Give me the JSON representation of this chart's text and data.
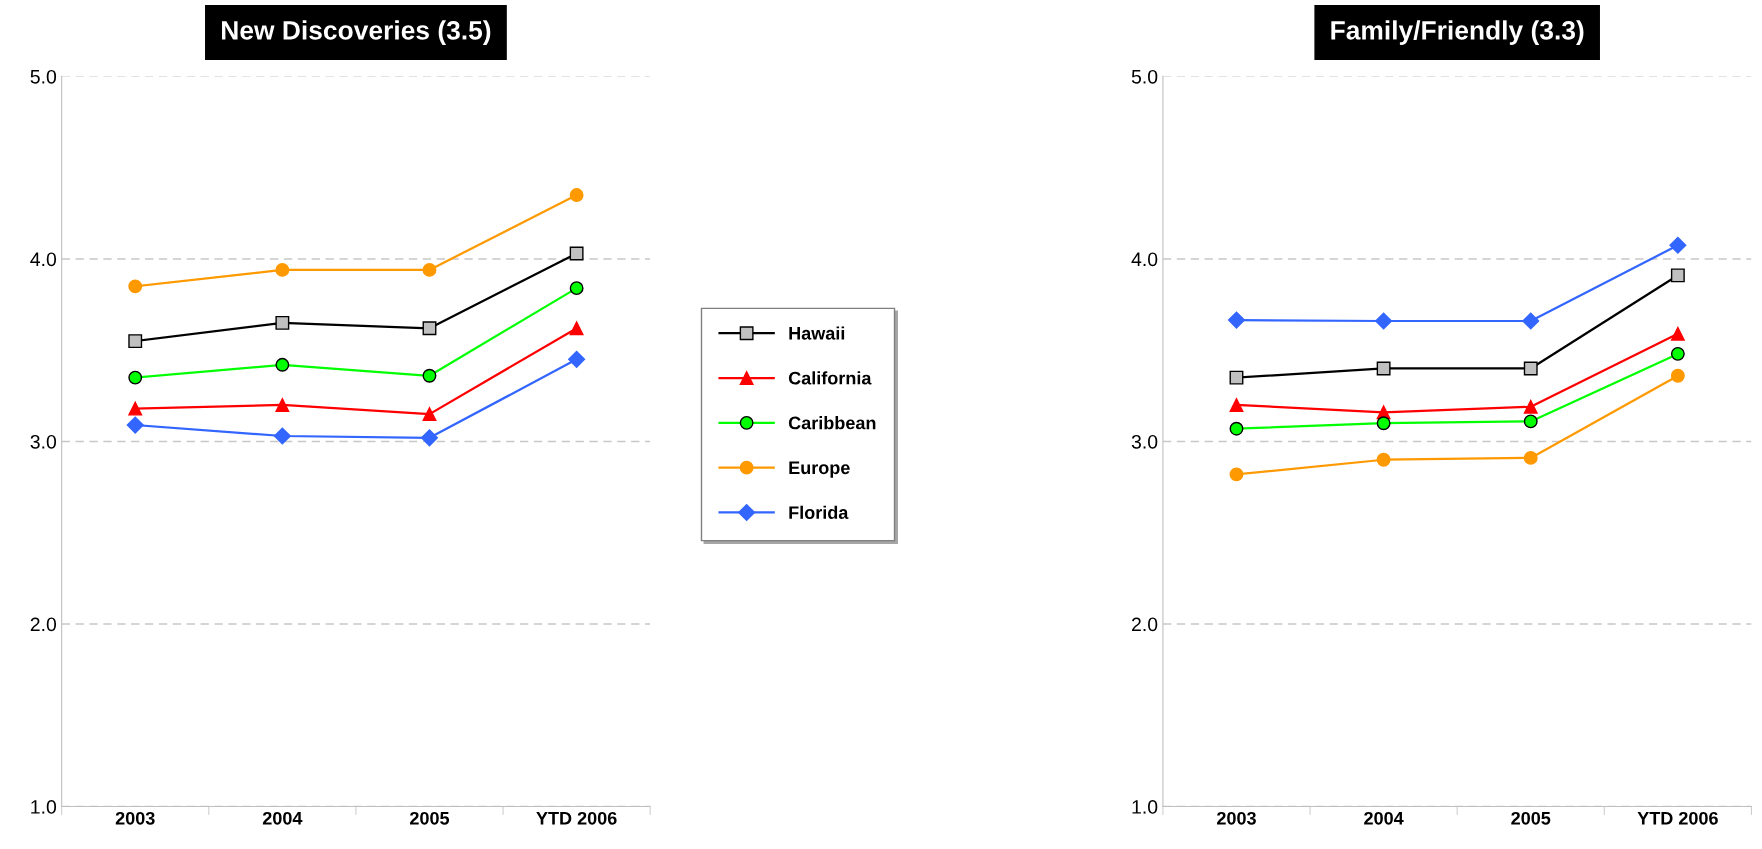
{
  "chart_data": [
    {
      "type": "line",
      "title": "New Discoveries (3.5)",
      "categories": [
        "2003",
        "2004",
        "2005",
        "YTD 2006"
      ],
      "ylim": [
        1.0,
        5.0
      ],
      "yticks": [
        {
          "value": 1,
          "label": "1.0"
        },
        {
          "value": 2,
          "label": "2.0"
        },
        {
          "value": 3,
          "label": "3.0"
        },
        {
          "value": 4,
          "label": "4.0"
        },
        {
          "value": 5,
          "label": "5.0"
        }
      ],
      "grid": "y",
      "legend": "right",
      "series": [
        {
          "name": "Hawaii",
          "color": "#000000",
          "marker": "square",
          "values": [
            3.55,
            3.65,
            3.62,
            4.03
          ]
        },
        {
          "name": "California",
          "color": "#ff0000",
          "marker": "triangle",
          "values": [
            3.18,
            3.2,
            3.15,
            3.62
          ]
        },
        {
          "name": "Caribbean",
          "color": "#00ff00",
          "marker": "circle",
          "values": [
            3.35,
            3.42,
            3.36,
            3.84
          ]
        },
        {
          "name": "Europe",
          "color": "#ff9900",
          "marker": "circle",
          "values": [
            3.85,
            3.94,
            3.94,
            4.35
          ]
        },
        {
          "name": "Florida",
          "color": "#3366ff",
          "marker": "diamond",
          "values": [
            3.09,
            3.03,
            3.02,
            3.45
          ]
        }
      ]
    },
    {
      "type": "line",
      "title": "Family/Friendly (3.3)",
      "categories": [
        "2003",
        "2004",
        "2005",
        "YTD 2006"
      ],
      "ylim": [
        1.0,
        5.0
      ],
      "yticks": [
        {
          "value": 1,
          "label": "1.0"
        },
        {
          "value": 2,
          "label": "2.0"
        },
        {
          "value": 3,
          "label": "3.0"
        },
        {
          "value": 4,
          "label": "4.0"
        },
        {
          "value": 5,
          "label": "5.0"
        }
      ],
      "grid": "y",
      "series": [
        {
          "color": "#000000",
          "marker": "square",
          "values": [
            3.35,
            3.4,
            3.4,
            3.91
          ]
        },
        {
          "color": "#ff0000",
          "marker": "triangle",
          "values": [
            3.2,
            3.16,
            3.19,
            3.59
          ]
        },
        {
          "color": "#00ff00",
          "marker": "circle",
          "values": [
            3.07,
            3.1,
            3.11,
            3.48
          ]
        },
        {
          "color": "#ff9900",
          "marker": "circle",
          "values": [
            2.82,
            2.9,
            2.91,
            3.36
          ]
        },
        {
          "color": "#3366ff",
          "marker": "diamond",
          "values": [
            3.665,
            3.66,
            3.66,
            4.075
          ]
        }
      ]
    }
  ]
}
